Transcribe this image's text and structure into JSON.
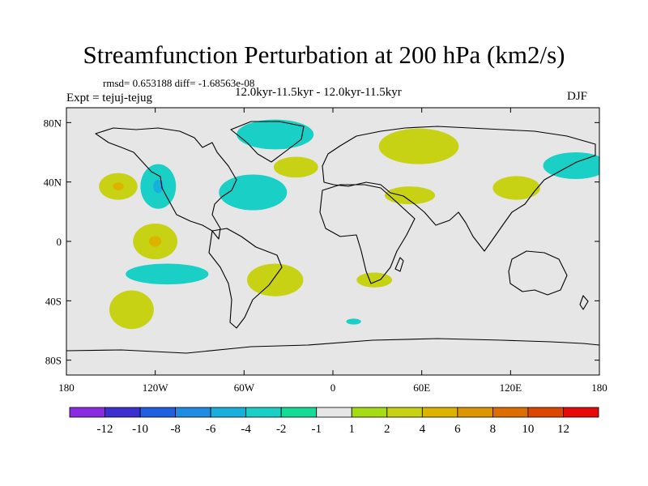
{
  "chart_data": {
    "type": "contour-map",
    "title": "Streamfunction Perturbation at 200 hPa (km2/s)",
    "stats": "rmsd= 0.653188 diff= -1.68563e-08",
    "subtitle": "12.0kyr-11.5kyr - 12.0kyr-11.5kyr",
    "left_label": "Expt = tejuj-tejug",
    "right_label": "DJF",
    "xlim": [
      -180,
      180
    ],
    "ylim": [
      -90,
      90
    ],
    "x_ticks": [
      {
        "value": -180,
        "label": "180"
      },
      {
        "value": -120,
        "label": "120W"
      },
      {
        "value": -60,
        "label": "60W"
      },
      {
        "value": 0,
        "label": "0"
      },
      {
        "value": 60,
        "label": "60E"
      },
      {
        "value": 120,
        "label": "120E"
      },
      {
        "value": 180,
        "label": "180"
      }
    ],
    "y_ticks": [
      {
        "value": 80,
        "label": "80N"
      },
      {
        "value": 40,
        "label": "40N"
      },
      {
        "value": 0,
        "label": "0"
      },
      {
        "value": -40,
        "label": "40S"
      },
      {
        "value": -80,
        "label": "80S"
      }
    ],
    "colorbar": {
      "colors": [
        "#8a2be2",
        "#3e2fd1",
        "#1f5fe0",
        "#1e8ce0",
        "#17b0dc",
        "#1ad0c6",
        "#14dc96",
        "#e6e6e6",
        "#a6dc14",
        "#c8d214",
        "#dcb400",
        "#dc9600",
        "#dc6e00",
        "#dc4600",
        "#e60a0a"
      ],
      "labels": [
        "-12",
        "-10",
        "-8",
        "-6",
        "-4",
        "-2",
        "-1",
        "1",
        "2",
        "4",
        "6",
        "8",
        "10",
        "12"
      ]
    },
    "anomalies": [
      {
        "lon": -145,
        "lat": 37,
        "rlon": 13,
        "rlat": 9,
        "level": "2",
        "core": "4"
      },
      {
        "lon": -118,
        "lat": 37,
        "rlon": 12,
        "rlat": 15,
        "level": "-2",
        "core": "-4"
      },
      {
        "lon": -120,
        "lat": 0,
        "rlon": 15,
        "rlat": 12,
        "level": "2",
        "core": "4"
      },
      {
        "lon": -112,
        "lat": -22,
        "rlon": 28,
        "rlat": 7,
        "level": "-2"
      },
      {
        "lon": -136,
        "lat": -46,
        "rlon": 15,
        "rlat": 13,
        "level": "2"
      },
      {
        "lon": -39,
        "lat": 72,
        "rlon": 26,
        "rlat": 10,
        "level": "-2"
      },
      {
        "lon": -25,
        "lat": 50,
        "rlon": 15,
        "rlat": 7,
        "level": "2"
      },
      {
        "lon": -54,
        "lat": 33,
        "rlon": 23,
        "rlat": 12,
        "level": "-2"
      },
      {
        "lon": -39,
        "lat": -26,
        "rlon": 19,
        "rlat": 11,
        "level": "2"
      },
      {
        "lon": 58,
        "lat": 64,
        "rlon": 27,
        "rlat": 12,
        "level": "2"
      },
      {
        "lon": 52,
        "lat": 31,
        "rlon": 17,
        "rlat": 6,
        "level": "2"
      },
      {
        "lon": 124,
        "lat": 36,
        "rlon": 16,
        "rlat": 8,
        "level": "2"
      },
      {
        "lon": 164,
        "lat": 51,
        "rlon": 22,
        "rlat": 9,
        "level": "-2"
      },
      {
        "lon": 28,
        "lat": -26,
        "rlon": 12,
        "rlat": 5,
        "level": "2"
      },
      {
        "lon": 14,
        "lat": -54,
        "rlon": 5,
        "rlat": 2,
        "level": "-2"
      }
    ]
  }
}
